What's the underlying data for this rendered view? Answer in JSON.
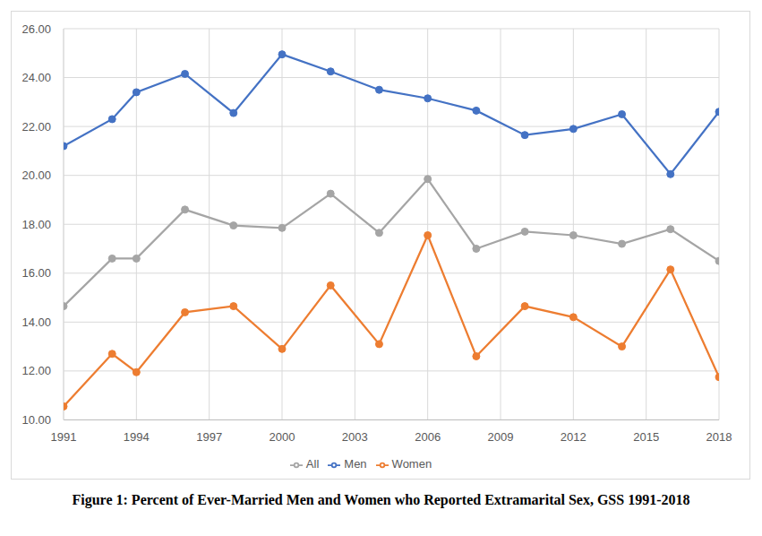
{
  "chart_data": {
    "type": "line",
    "title": "Figure 1: Percent of Ever-Married Men and Women who Reported Extramarital Sex, GSS 1991-2018",
    "x": [
      1991,
      1993,
      1994,
      1996,
      1998,
      2000,
      2002,
      2004,
      2006,
      2008,
      2010,
      2012,
      2014,
      2016,
      2018
    ],
    "series": [
      {
        "name": "Men",
        "color": "#4472c4",
        "marker": "circle",
        "line_style": "solid",
        "values": [
          21.2,
          22.3,
          23.4,
          24.15,
          22.55,
          24.95,
          24.25,
          23.5,
          23.15,
          22.65,
          21.65,
          21.9,
          22.5,
          20.05,
          22.6
        ]
      },
      {
        "name": "Women",
        "color": "#ed7d31",
        "marker": "circle",
        "line_style": "solid",
        "values": [
          10.55,
          12.7,
          11.95,
          14.4,
          14.65,
          12.9,
          15.5,
          13.1,
          17.55,
          12.6,
          14.65,
          14.2,
          13.0,
          16.15,
          11.75
        ]
      },
      {
        "name": "All",
        "color": "#a5a5a5",
        "marker": "circle",
        "line_style": "solid",
        "values": [
          14.65,
          16.6,
          16.6,
          18.6,
          17.95,
          17.85,
          19.25,
          17.65,
          19.85,
          17.0,
          17.7,
          17.55,
          17.2,
          17.8,
          16.5
        ]
      }
    ],
    "xlim": [
      1991,
      2018
    ],
    "xticks": [
      1991,
      1994,
      1997,
      2000,
      2003,
      2006,
      2009,
      2012,
      2015,
      2018
    ],
    "ylim": [
      10,
      26
    ],
    "yticks": [
      {
        "value": 10,
        "label": "10.00"
      },
      {
        "value": 12,
        "label": "12.00"
      },
      {
        "value": 14,
        "label": "14.00"
      },
      {
        "value": 16,
        "label": "16.00"
      },
      {
        "value": 18,
        "label": "18.00"
      },
      {
        "value": 20,
        "label": "20.00"
      },
      {
        "value": 22,
        "label": "22.00"
      },
      {
        "value": 24,
        "label": "24.00"
      },
      {
        "value": 26,
        "label": "26.00"
      }
    ],
    "grid": true,
    "legend": "bottom"
  }
}
